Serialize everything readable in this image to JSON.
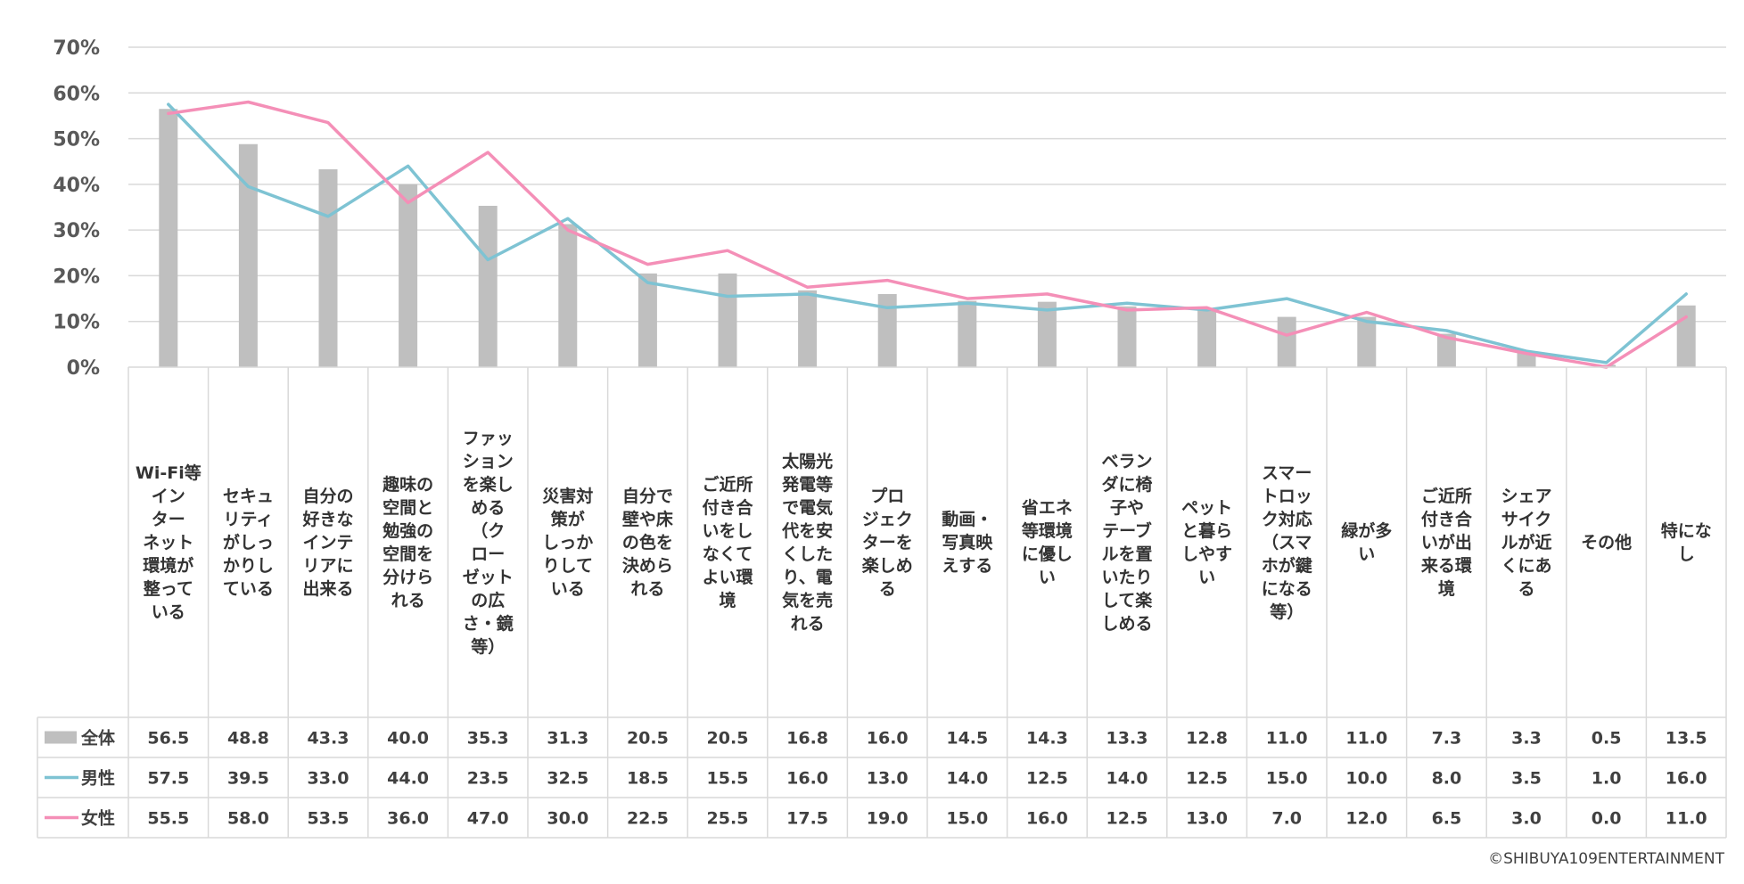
{
  "chart_data": {
    "type": "bar",
    "y_axis": {
      "min": 0,
      "max": 70,
      "step": 10,
      "tick_labels": [
        "0%",
        "10%",
        "20%",
        "30%",
        "40%",
        "50%",
        "60%",
        "70%"
      ]
    },
    "categories": [
      "Wi-Fi等インターネット環境が整っている",
      "セキュリティがしっかりしている",
      "自分の好きなインテリアに出来る",
      "趣味の空間と勉強の空間を分けられる",
      "ファッションを楽しめる（クローゼットの広さ・鏡等）",
      "災害対策がしっかりしている",
      "自分で壁や床の色を決められる",
      "ご近所付き合いをしなくてよい環境",
      "太陽光発電等で電気代を安くしたり、電気を売れる",
      "プロジェクターを楽しめる",
      "動画・写真映えする",
      "省エネ等環境に優しい",
      "ベランダに椅子やテーブルを置いたりして楽しめる",
      "ペットと暮らしやすい",
      "スマートロック対応（スマホが鍵になる等）",
      "緑が多い",
      "ご近所付き合いが出来る環境",
      "シェアサイクルが近くにある",
      "その他",
      "特になし"
    ],
    "category_lines": [
      [
        "Wi-Fi等",
        "イン",
        "ター",
        "ネット",
        "環境が",
        "整って",
        "いる"
      ],
      [
        "セキュ",
        "リティ",
        "がしっ",
        "かりし",
        "ている"
      ],
      [
        "自分の",
        "好きな",
        "インテ",
        "リアに",
        "出来る"
      ],
      [
        "趣味の",
        "空間と",
        "勉強の",
        "空間を",
        "分けら",
        "れる"
      ],
      [
        "ファッ",
        "ション",
        "を楽し",
        "める",
        "（ク",
        "ロー",
        "ゼット",
        "の広",
        "さ・鏡",
        "等）"
      ],
      [
        "災害対",
        "策が",
        "しっか",
        "りして",
        "いる"
      ],
      [
        "自分で",
        "壁や床",
        "の色を",
        "決めら",
        "れる"
      ],
      [
        "ご近所",
        "付き合",
        "いをし",
        "なくて",
        "よい環",
        "境"
      ],
      [
        "太陽光",
        "発電等",
        "で電気",
        "代を安",
        "くした",
        "り、電",
        "気を売",
        "れる"
      ],
      [
        "プロ",
        "ジェク",
        "ターを",
        "楽しめ",
        "る"
      ],
      [
        "動画・",
        "写真映",
        "えする"
      ],
      [
        "省エネ",
        "等環境",
        "に優し",
        "い"
      ],
      [
        "ベラン",
        "ダに椅",
        "子や",
        "テーブ",
        "ルを置",
        "いたり",
        "して楽",
        "しめる"
      ],
      [
        "ペット",
        "と暮ら",
        "しやす",
        "い"
      ],
      [
        "スマー",
        "トロッ",
        "ク対応",
        "（スマ",
        "ホが鍵",
        "になる",
        "等）"
      ],
      [
        "緑が多",
        "い"
      ],
      [
        "ご近所",
        "付き合",
        "いが出",
        "来る環",
        "境"
      ],
      [
        "シェア",
        "サイク",
        "ルが近",
        "くにあ",
        "る"
      ],
      [
        "その他"
      ],
      [
        "特にな",
        "し"
      ]
    ],
    "series": [
      {
        "name": "全体",
        "type": "bar",
        "color": "#bfbfbf",
        "values": [
          56.5,
          48.8,
          43.3,
          40.0,
          35.3,
          31.3,
          20.5,
          20.5,
          16.8,
          16.0,
          14.5,
          14.3,
          13.3,
          12.8,
          11.0,
          11.0,
          7.3,
          3.3,
          0.5,
          13.5
        ],
        "labels": [
          "56.5",
          "48.8",
          "43.3",
          "40.0",
          "35.3",
          "31.3",
          "20.5",
          "20.5",
          "16.8",
          "16.0",
          "14.5",
          "14.3",
          "13.3",
          "12.8",
          "11.0",
          "11.0",
          "7.3",
          "3.3",
          "0.5",
          "13.5"
        ]
      },
      {
        "name": "男性",
        "type": "line",
        "color": "#7ec3d3",
        "values": [
          57.5,
          39.5,
          33.0,
          44.0,
          23.5,
          32.5,
          18.5,
          15.5,
          16.0,
          13.0,
          14.0,
          12.5,
          14.0,
          12.5,
          15.0,
          10.0,
          8.0,
          3.5,
          1.0,
          16.0
        ],
        "labels": [
          "57.5",
          "39.5",
          "33.0",
          "44.0",
          "23.5",
          "32.5",
          "18.5",
          "15.5",
          "16.0",
          "13.0",
          "14.0",
          "12.5",
          "14.0",
          "12.5",
          "15.0",
          "10.0",
          "8.0",
          "3.5",
          "1.0",
          "16.0"
        ]
      },
      {
        "name": "女性",
        "type": "line",
        "color": "#f48fb7",
        "values": [
          55.5,
          58.0,
          53.5,
          36.0,
          47.0,
          30.0,
          22.5,
          25.5,
          17.5,
          19.0,
          15.0,
          16.0,
          12.5,
          13.0,
          7.0,
          12.0,
          6.5,
          3.0,
          0.0,
          11.0
        ],
        "labels": [
          "55.5",
          "58.0",
          "53.5",
          "36.0",
          "47.0",
          "30.0",
          "22.5",
          "25.5",
          "17.5",
          "19.0",
          "15.0",
          "16.0",
          "12.5",
          "13.0",
          "7.0",
          "12.0",
          "6.5",
          "3.0",
          "0.0",
          "11.0"
        ]
      }
    ],
    "legend": "data-table",
    "grid": true
  },
  "copyright": "©SHIBUYA109ENTERTAINMENT"
}
